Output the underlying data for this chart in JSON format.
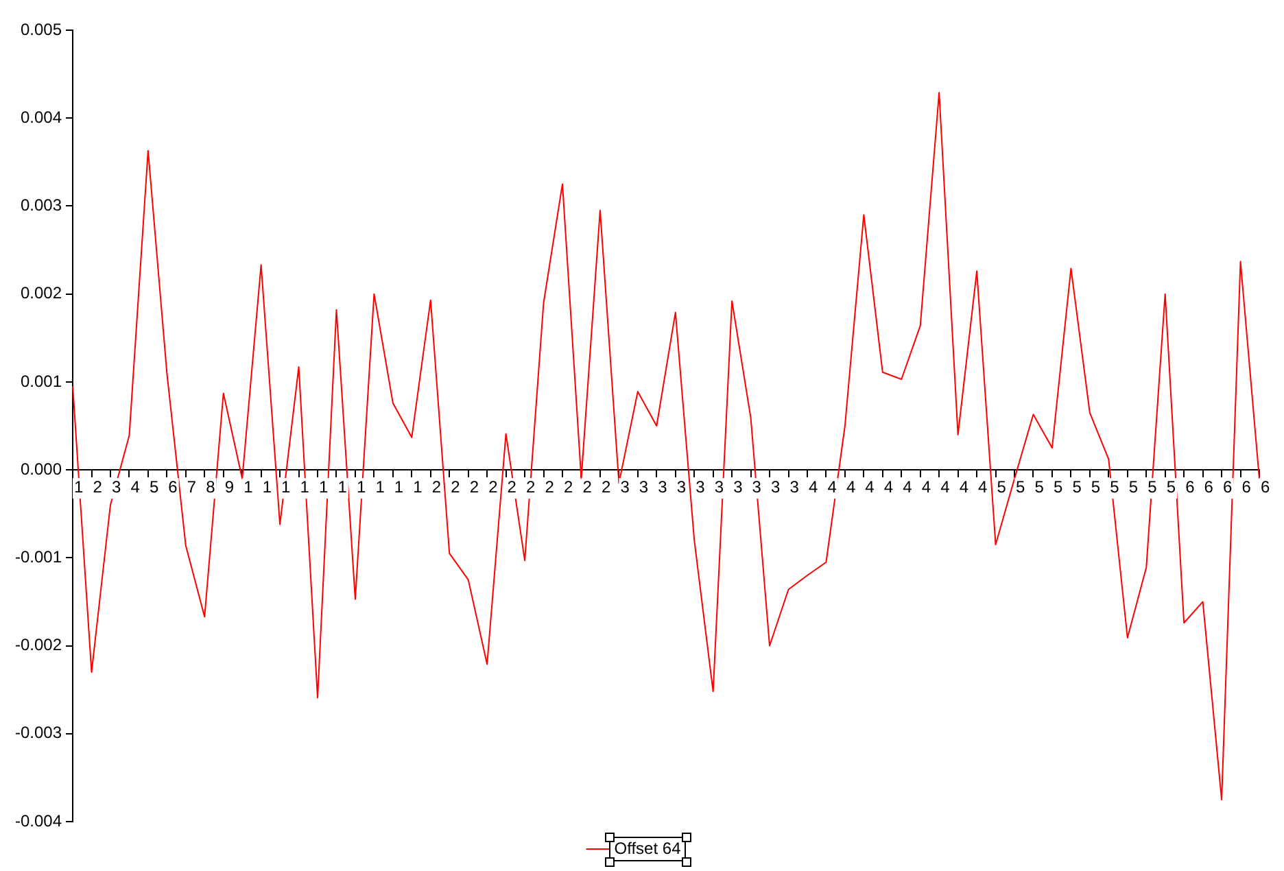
{
  "chart_data": {
    "type": "line",
    "categories": [
      "1",
      "2",
      "3",
      "4",
      "5",
      "6",
      "7",
      "8",
      "9",
      "1",
      "1",
      "1",
      "1",
      "1",
      "1",
      "1",
      "1",
      "1",
      "1",
      "2",
      "2",
      "2",
      "2",
      "2",
      "2",
      "2",
      "2",
      "2",
      "2",
      "3",
      "3",
      "3",
      "3",
      "3",
      "3",
      "3",
      "3",
      "3",
      "3",
      "4",
      "4",
      "4",
      "4",
      "4",
      "4",
      "4",
      "4",
      "4",
      "4",
      "5",
      "5",
      "5",
      "5",
      "5",
      "5",
      "5",
      "5",
      "5",
      "5",
      "6",
      "6",
      "6",
      "6",
      "6"
    ],
    "series": [
      {
        "name": "Offset 64",
        "color": "#ff0000",
        "values": [
          0.00095,
          -0.0023,
          -0.0004,
          0.00039,
          0.00363,
          0.0011,
          -0.00086,
          -0.00167,
          0.00087,
          -0.0001,
          0.00233,
          -0.00062,
          0.00117,
          -0.00259,
          0.00182,
          -0.00147,
          0.002,
          0.00076,
          0.00037,
          0.00193,
          -0.00095,
          -0.00125,
          -0.00221,
          0.00041,
          -0.00103,
          0.0019,
          0.00325,
          -0.0001,
          0.00295,
          -0.00015,
          0.00089,
          0.0005,
          0.00179,
          -0.0008,
          -0.00252,
          0.00192,
          0.00059,
          -0.002,
          -0.00136,
          -0.0012,
          -0.00105,
          0.0005,
          0.0029,
          0.00111,
          0.00103,
          0.00164,
          0.00429,
          0.0004,
          0.00226,
          -0.00085,
          -0.0001,
          0.00063,
          0.00025,
          0.00229,
          0.00065,
          0.00012,
          -0.00191,
          -0.00111,
          0.002,
          -0.00174,
          -0.0015,
          -0.00375,
          0.00237,
          -0.0001
        ]
      }
    ],
    "ylim": [
      -0.004,
      0.005
    ],
    "yticks": [
      {
        "value": -0.004,
        "label": "-0.004"
      },
      {
        "value": -0.003,
        "label": "-0.003"
      },
      {
        "value": -0.002,
        "label": "-0.002"
      },
      {
        "value": -0.001,
        "label": "-0.001"
      },
      {
        "value": 0,
        "label": "0.000"
      },
      {
        "value": 0.001,
        "label": "0.001"
      },
      {
        "value": 0.002,
        "label": "0.002"
      },
      {
        "value": 0.003,
        "label": "0.003"
      },
      {
        "value": 0.004,
        "label": "0.004"
      },
      {
        "value": 0.005,
        "label": "0.005"
      }
    ],
    "grid": false,
    "legend": "bottom",
    "marker": "none",
    "line_style": "solid"
  }
}
